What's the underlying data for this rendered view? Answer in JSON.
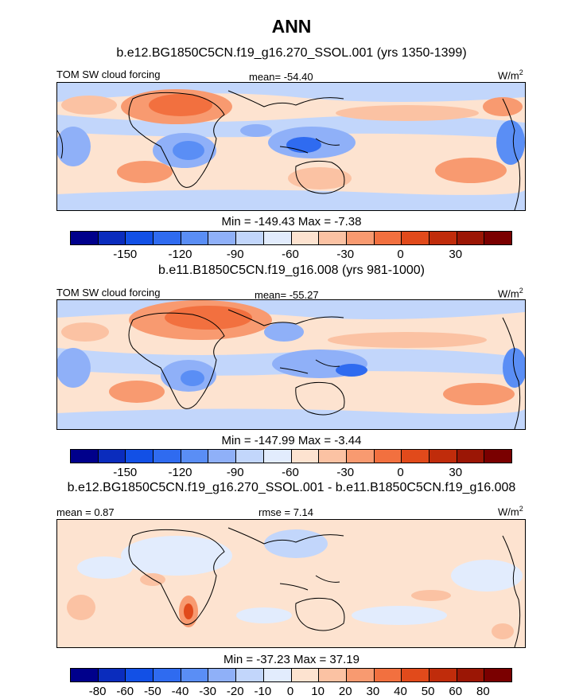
{
  "figure_title": "ANN",
  "units_base": "W/m",
  "units_exp": "2",
  "colors": {
    "scale": [
      "#00008b",
      "#0a2cbd",
      "#1250e6",
      "#2f6bf0",
      "#5a8ef5",
      "#8fb0f8",
      "#c2d6fb",
      "#e2ecfd",
      "#fde3d0",
      "#fbc2a3",
      "#f89a70",
      "#f2703f",
      "#e14a1b",
      "#c02c0b",
      "#9b1605",
      "#7a0000"
    ],
    "ocean_base": "#fde3d0",
    "land_line": "#000000"
  },
  "panels": [
    {
      "title": "b.e12.BG1850C5CN.f19_g16.270_SSOL.001 (yrs 1350-1399)",
      "left_label": "TOM SW cloud forcing",
      "center_label": "mean= -54.40",
      "min_max": "Min = -149.43 Max =  -7.38",
      "colorbar_ticks": [
        "-150",
        "-120",
        "-90",
        "-60",
        "-30",
        "0",
        "30"
      ]
    },
    {
      "title": "b.e11.B1850C5CN.f19_g16.008 (yrs 981-1000)",
      "left_label": "TOM SW cloud forcing",
      "center_label": "mean= -55.27",
      "min_max": "Min = -147.99 Max =  -3.44",
      "colorbar_ticks": [
        "-150",
        "-120",
        "-90",
        "-60",
        "-30",
        "0",
        "30"
      ]
    },
    {
      "title": "b.e12.BG1850C5CN.f19_g16.270_SSOL.001 - b.e11.B1850C5CN.f19_g16.008",
      "left_label": "mean =   0.87",
      "center_label": "rmse =   7.14",
      "min_max": "Min = -37.23 Max =  37.19",
      "colorbar_ticks": [
        "-80",
        "-60",
        "-50",
        "-40",
        "-30",
        "-20",
        "-10",
        "0",
        "10",
        "20",
        "30",
        "40",
        "50",
        "60",
        "80"
      ]
    }
  ]
}
